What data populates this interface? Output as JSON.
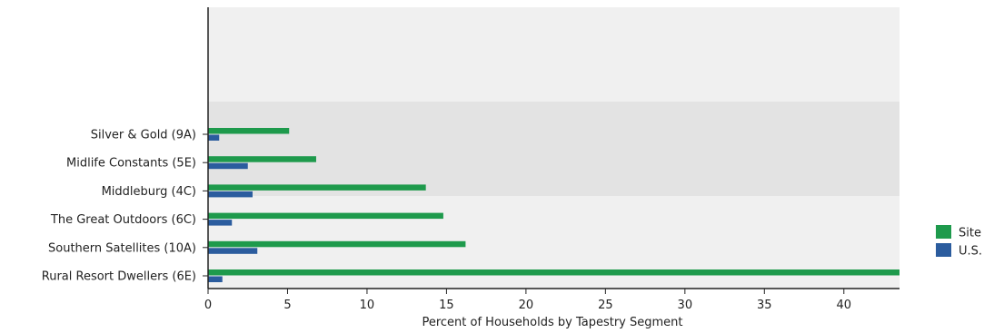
{
  "chart_data": {
    "type": "bar",
    "orientation": "horizontal",
    "categories": [
      "Rural Resort Dwellers (6E)",
      "Southern Satellites (10A)",
      "The Great Outdoors (6C)",
      "Middleburg (4C)",
      "Midlife Constants (5E)",
      "Silver & Gold (9A)"
    ],
    "series": [
      {
        "name": "Site",
        "color": "#1e9a4c",
        "values": [
          43.5,
          16.2,
          14.8,
          13.7,
          6.8,
          5.1
        ]
      },
      {
        "name": "U.S.",
        "color": "#2b5c9e",
        "values": [
          0.9,
          3.1,
          1.5,
          2.8,
          2.5,
          0.7
        ]
      }
    ],
    "xlabel": "Percent of Households by Tapestry Segment",
    "ylabel": "",
    "xlim": [
      0,
      43.5
    ],
    "xticks": [
      "0",
      "5",
      "10",
      "15",
      "20",
      "25",
      "30",
      "35",
      "40"
    ],
    "legend_position": "right",
    "grid": false
  }
}
